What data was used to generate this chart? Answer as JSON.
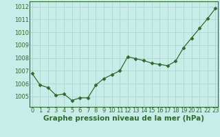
{
  "x": [
    0,
    1,
    2,
    3,
    4,
    5,
    6,
    7,
    8,
    9,
    10,
    11,
    12,
    13,
    14,
    15,
    16,
    17,
    18,
    19,
    20,
    21,
    22,
    23
  ],
  "y": [
    1006.8,
    1005.9,
    1005.7,
    1005.1,
    1005.2,
    1004.7,
    1004.9,
    1004.9,
    1005.9,
    1006.4,
    1006.7,
    1007.0,
    1008.1,
    1007.95,
    1007.8,
    1007.6,
    1007.5,
    1007.4,
    1007.75,
    1008.8,
    1009.55,
    1010.3,
    1011.05,
    1011.85
  ],
  "line_color": "#2d6a2d",
  "marker": "D",
  "marker_size": 2.5,
  "bg_color": "#c8ece8",
  "grid_color": "#b0d8d0",
  "xlabel": "Graphe pression niveau de la mer (hPa)",
  "xlabel_fontsize": 7.5,
  "xlabel_color": "#2d6a2d",
  "xlabel_bold": true,
  "tick_label_color": "#2d6a2d",
  "tick_label_fontsize": 6,
  "ylim": [
    1004.2,
    1012.4
  ],
  "yticks": [
    1005,
    1006,
    1007,
    1008,
    1009,
    1010,
    1011,
    1012
  ],
  "xlim": [
    -0.3,
    23.3
  ],
  "xticks": [
    0,
    1,
    2,
    3,
    4,
    5,
    6,
    7,
    8,
    9,
    10,
    11,
    12,
    13,
    14,
    15,
    16,
    17,
    18,
    19,
    20,
    21,
    22,
    23
  ]
}
